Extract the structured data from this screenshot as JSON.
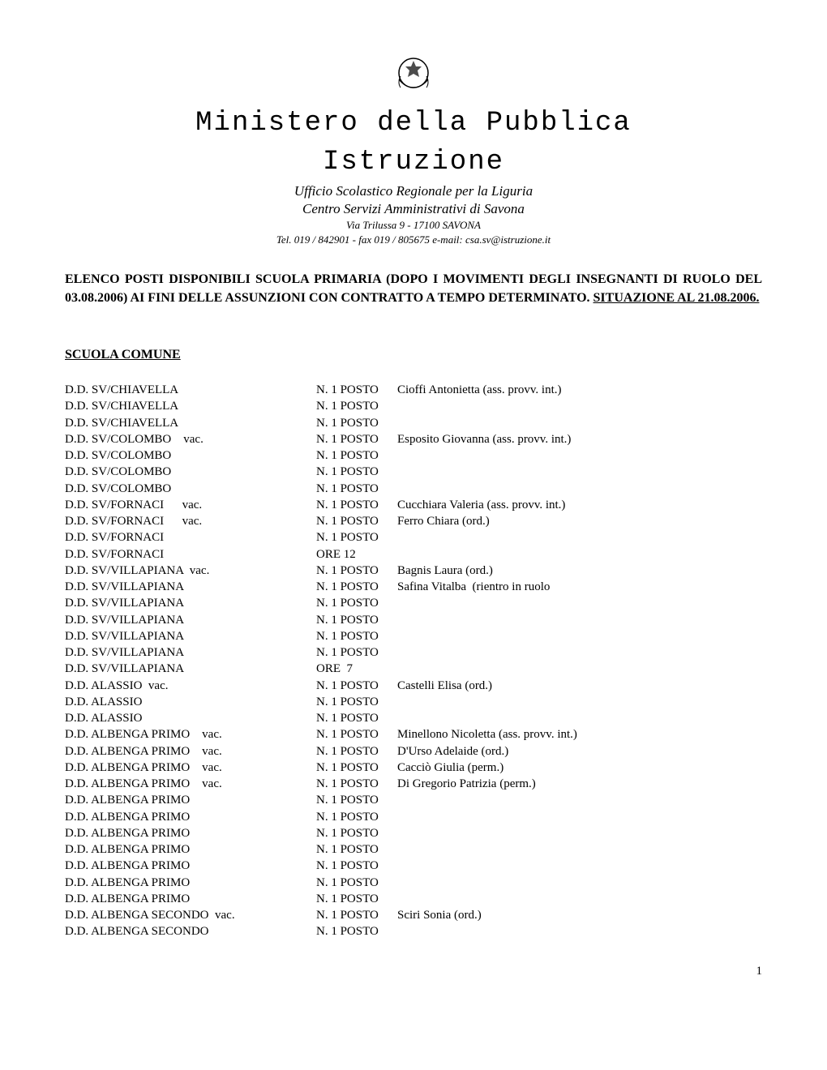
{
  "header": {
    "ministry_line1": "Ministero della Pubblica",
    "ministry_line2": "Istruzione",
    "office": "Ufficio Scolastico Regionale per la Liguria",
    "center": "Centro Servizi Amministrativi di Savona",
    "address": "Via Trilussa 9 - 17100  SAVONA",
    "contact": "Tel.  019 / 842901 - fax 019 / 805675    e-mail: csa.sv@istruzione.it"
  },
  "announcement": {
    "text_before": "ELENCO POSTI DISPONIBILI SCUOLA PRIMARIA (DOPO I MOVIMENTI DEGLI INSEGNANTI DI RUOLO DEL 03.08.2006) AI FINI DELLE ASSUNZIONI CON CONTRATTO A TEMPO DETERMINATO. ",
    "text_underline": "SITUAZIONE AL 21.08.2006."
  },
  "section_title": "SCUOLA COMUNE",
  "posts": [
    {
      "school": "D.D. SV/CHIAVELLA",
      "posto": "N. 1 POSTO",
      "person": "Cioffi Antonietta (ass. provv. int.)"
    },
    {
      "school": "D.D. SV/CHIAVELLA",
      "posto": "N. 1 POSTO",
      "person": ""
    },
    {
      "school": "D.D. SV/CHIAVELLA",
      "posto": "N. 1 POSTO",
      "person": ""
    },
    {
      "school": "D.D. SV/COLOMBO    vac.",
      "posto": "N. 1 POSTO",
      "person": "Esposito Giovanna (ass. provv. int.)"
    },
    {
      "school": "D.D. SV/COLOMBO",
      "posto": "N. 1 POSTO",
      "person": ""
    },
    {
      "school": "D.D. SV/COLOMBO",
      "posto": "N. 1 POSTO",
      "person": ""
    },
    {
      "school": "D.D. SV/COLOMBO",
      "posto": "N. 1 POSTO",
      "person": ""
    },
    {
      "school": "D.D. SV/FORNACI      vac.",
      "posto": "N. 1 POSTO",
      "person": "Cucchiara Valeria (ass. provv. int.)"
    },
    {
      "school": "D.D. SV/FORNACI      vac.",
      "posto": "N. 1 POSTO",
      "person": "Ferro Chiara (ord.)"
    },
    {
      "school": "D.D. SV/FORNACI",
      "posto": "N. 1 POSTO",
      "person": ""
    },
    {
      "school": "D.D. SV/FORNACI",
      "posto": "ORE 12",
      "person": ""
    },
    {
      "school": "D.D. SV/VILLAPIANA  vac.",
      "posto": "N. 1 POSTO",
      "person": "Bagnis Laura (ord.)"
    },
    {
      "school": "D.D. SV/VILLAPIANA",
      "posto": "N. 1 POSTO",
      "person": "Safina Vitalba  (rientro in ruolo"
    },
    {
      "school": "D.D. SV/VILLAPIANA",
      "posto": "N. 1 POSTO",
      "person": ""
    },
    {
      "school": "D.D. SV/VILLAPIANA",
      "posto": "N. 1 POSTO",
      "person": ""
    },
    {
      "school": "D.D. SV/VILLAPIANA",
      "posto": "N. 1 POSTO",
      "person": ""
    },
    {
      "school": "D.D. SV/VILLAPIANA",
      "posto": "N. 1 POSTO",
      "person": ""
    },
    {
      "school": "D.D. SV/VILLAPIANA",
      "posto": "ORE  7",
      "person": ""
    },
    {
      "school": "D.D. ALASSIO  vac.",
      "posto": "N. 1 POSTO",
      "person": "Castelli Elisa (ord.)"
    },
    {
      "school": "D.D. ALASSIO",
      "posto": "N. 1 POSTO",
      "person": ""
    },
    {
      "school": "D.D. ALASSIO",
      "posto": "N. 1 POSTO",
      "person": ""
    },
    {
      "school": "D.D. ALBENGA PRIMO    vac.",
      "posto": "N. 1 POSTO",
      "person": "Minellono Nicoletta (ass. provv. int.)"
    },
    {
      "school": "D.D. ALBENGA PRIMO    vac.",
      "posto": "N. 1 POSTO",
      "person": "D'Urso Adelaide (ord.)"
    },
    {
      "school": "D.D. ALBENGA PRIMO    vac.",
      "posto": "N. 1 POSTO",
      "person": "Cacciò Giulia (perm.)"
    },
    {
      "school": "D.D. ALBENGA PRIMO    vac.",
      "posto": "N. 1 POSTO",
      "person": "Di Gregorio Patrizia (perm.)"
    },
    {
      "school": "D.D. ALBENGA PRIMO",
      "posto": "N. 1 POSTO",
      "person": ""
    },
    {
      "school": "D.D. ALBENGA PRIMO",
      "posto": "N. 1 POSTO",
      "person": ""
    },
    {
      "school": "D.D. ALBENGA PRIMO",
      "posto": "N. 1 POSTO",
      "person": ""
    },
    {
      "school": "D.D. ALBENGA PRIMO",
      "posto": "N. 1 POSTO",
      "person": ""
    },
    {
      "school": "D.D. ALBENGA PRIMO",
      "posto": "N. 1 POSTO",
      "person": ""
    },
    {
      "school": "D.D. ALBENGA PRIMO",
      "posto": "N. 1 POSTO",
      "person": ""
    },
    {
      "school": "D.D. ALBENGA PRIMO",
      "posto": "N. 1 POSTO",
      "person": ""
    },
    {
      "school": "D.D. ALBENGA SECONDO  vac.",
      "posto": "N. 1 POSTO",
      "person": "Sciri Sonia (ord.)"
    },
    {
      "school": "D.D. ALBENGA SECONDO",
      "posto": "N. 1 POSTO",
      "person": ""
    }
  ],
  "page_number": "1",
  "colors": {
    "background": "#ffffff",
    "text": "#000000"
  },
  "typography": {
    "ministry_font": "Courier New",
    "body_font": "Times New Roman",
    "ministry_fontsize": 34,
    "body_fontsize": 15,
    "announcement_fontsize": 16
  }
}
